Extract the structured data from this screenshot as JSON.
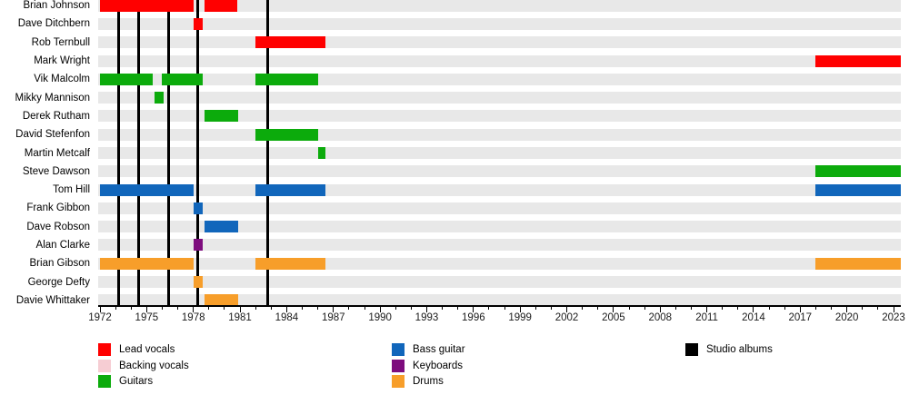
{
  "chart_data": {
    "type": "timeline",
    "description": "Band members timeline (Gantt-style) with studio album release markers",
    "x_axis": {
      "min": 1972,
      "max": 2023.5,
      "major_tick_years": [
        1972,
        1975,
        1978,
        1981,
        1984,
        1987,
        1990,
        1993,
        1996,
        1999,
        2002,
        2005,
        2008,
        2011,
        2014,
        2017,
        2020,
        2023
      ],
      "minor_tick_step_years": 1,
      "grid": false
    },
    "colors": {
      "lead_vocals": "#ff0000",
      "backing_vocals": "#f6cdd3",
      "guitars": "#0cab0c",
      "bass_guitar": "#1166bb",
      "keyboards": "#7d0c7d",
      "drums": "#f79e2a",
      "studio_albums": "#000000",
      "row_background": "#e8e8e8"
    },
    "members": [
      {
        "name": "Brian Johnson",
        "role": "lead_vocals",
        "intervals": [
          [
            1972,
            1978
          ],
          [
            1978.7,
            1980.8
          ]
        ]
      },
      {
        "name": "Dave Ditchbern",
        "role": "lead_vocals",
        "intervals": [
          [
            1978,
            1978.6
          ]
        ]
      },
      {
        "name": "Rob Ternbull",
        "role": "lead_vocals",
        "intervals": [
          [
            1982,
            1986.5
          ]
        ]
      },
      {
        "name": "Mark Wright",
        "role": "lead_vocals",
        "intervals": [
          [
            2018,
            2023.5
          ]
        ]
      },
      {
        "name": "Vik Malcolm",
        "role": "guitars",
        "intervals": [
          [
            1972,
            1975.4
          ],
          [
            1976,
            1978.6
          ],
          [
            1982,
            1986
          ]
        ]
      },
      {
        "name": "Mikky Mannison",
        "role": "guitars",
        "intervals": [
          [
            1975.5,
            1976.1
          ]
        ]
      },
      {
        "name": "Derek Rutham",
        "role": "guitars",
        "intervals": [
          [
            1978.7,
            1980.9
          ]
        ]
      },
      {
        "name": "David Stefenfon",
        "role": "guitars",
        "intervals": [
          [
            1982,
            1986
          ]
        ]
      },
      {
        "name": "Martin Metcalf",
        "role": "guitars",
        "intervals": [
          [
            1986,
            1986.5
          ]
        ]
      },
      {
        "name": "Steve Dawson",
        "role": "guitars",
        "intervals": [
          [
            2018,
            2023.5
          ]
        ]
      },
      {
        "name": "Tom Hill",
        "role": "bass_guitar",
        "intervals": [
          [
            1972,
            1978
          ],
          [
            1982,
            1986.5
          ],
          [
            2018,
            2023.5
          ]
        ]
      },
      {
        "name": "Frank Gibbon",
        "role": "bass_guitar",
        "intervals": [
          [
            1978,
            1978.6
          ]
        ]
      },
      {
        "name": "Dave Robson",
        "role": "bass_guitar",
        "intervals": [
          [
            1978.7,
            1980.9
          ]
        ]
      },
      {
        "name": "Alan Clarke",
        "role": "keyboards",
        "intervals": [
          [
            1978,
            1978.6
          ]
        ]
      },
      {
        "name": "Brian Gibson",
        "role": "drums",
        "intervals": [
          [
            1972,
            1978
          ],
          [
            1982,
            1986.5
          ],
          [
            2018,
            2023.5
          ]
        ]
      },
      {
        "name": "George Defty",
        "role": "drums",
        "intervals": [
          [
            1978,
            1978.6
          ]
        ]
      },
      {
        "name": "Davie Whittaker",
        "role": "drums",
        "intervals": [
          [
            1978.7,
            1980.9
          ]
        ]
      }
    ],
    "album_marker_years": [
      1973.2,
      1974.5,
      1976.4,
      1978.3,
      1982.8
    ],
    "legend": {
      "position": "bottom",
      "columns": [
        [
          {
            "key": "lead_vocals",
            "label": "Lead vocals"
          },
          {
            "key": "backing_vocals",
            "label": "Backing vocals"
          },
          {
            "key": "guitars",
            "label": "Guitars"
          }
        ],
        [
          {
            "key": "bass_guitar",
            "label": "Bass guitar"
          },
          {
            "key": "keyboards",
            "label": "Keyboards"
          },
          {
            "key": "drums",
            "label": "Drums"
          }
        ],
        [
          {
            "key": "studio_albums",
            "label": "Studio albums"
          }
        ]
      ]
    }
  }
}
